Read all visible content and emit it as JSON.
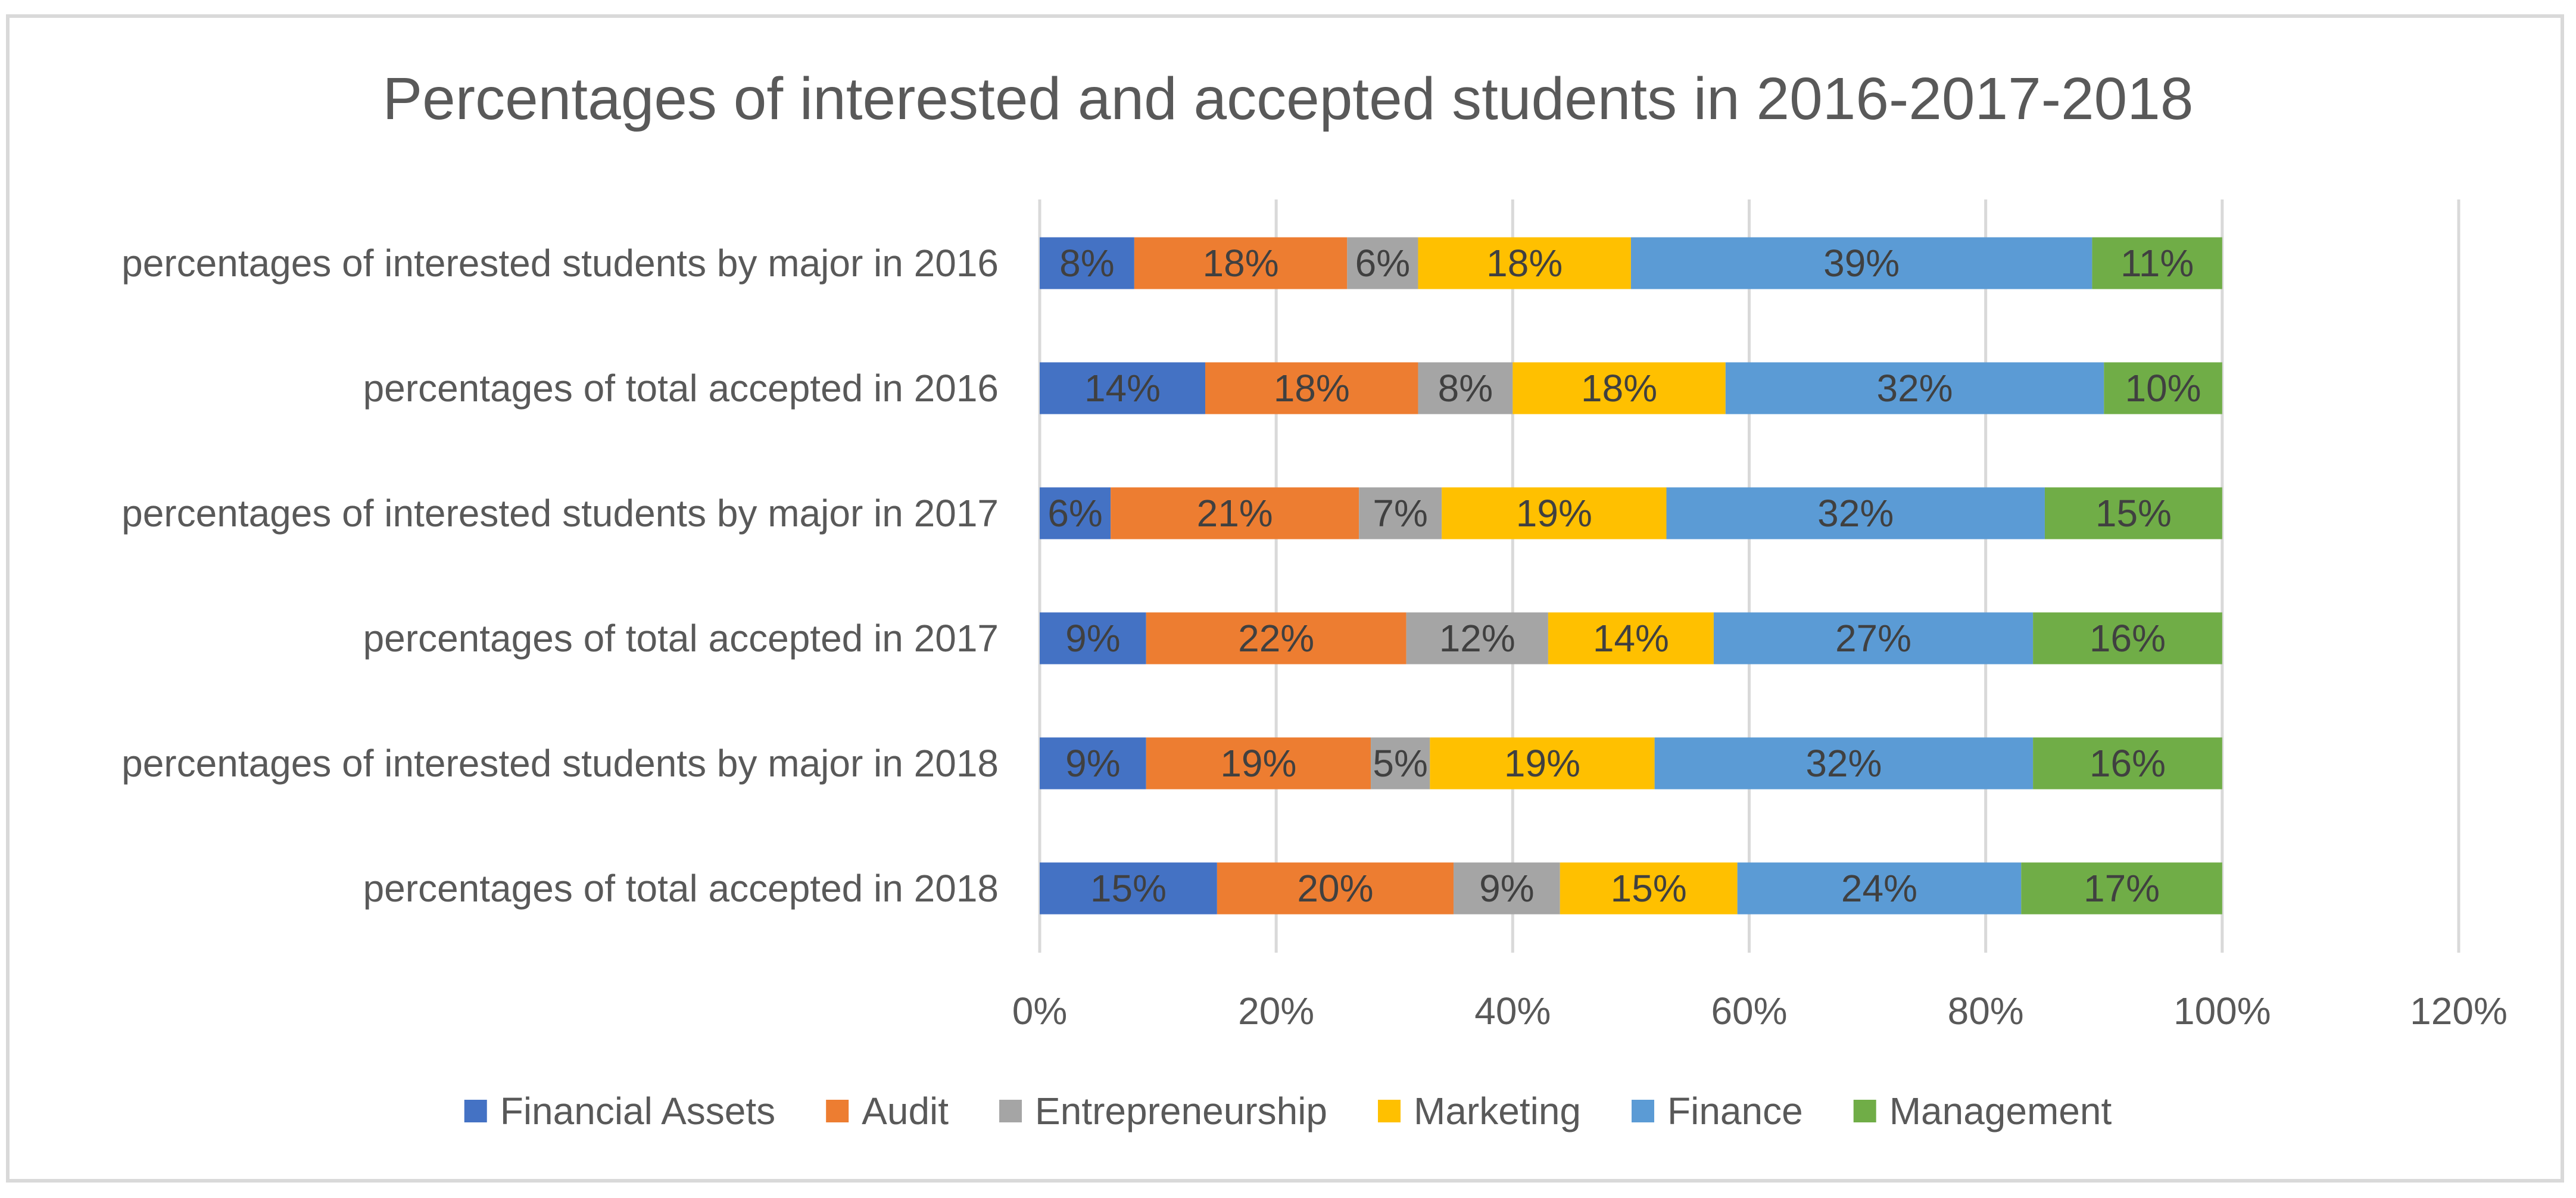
{
  "chart_data": {
    "type": "bar",
    "orientation": "horizontal",
    "stacked": true,
    "title": "Percentages of interested and accepted students in 2016-2017-2018",
    "categories": [
      "percentages of interested students by major in 2016",
      "percentages of total accepted in 2016",
      "percentages of interested students by major in 2017",
      "percentages of total accepted in 2017",
      "percentages of interested students by major in 2018",
      "percentages of total accepted in 2018"
    ],
    "series": [
      {
        "name": "Financial Assets",
        "color": "#4472c4",
        "values": [
          8,
          14,
          6,
          9,
          9,
          15
        ]
      },
      {
        "name": "Audit",
        "color": "#ed7d31",
        "values": [
          18,
          18,
          21,
          22,
          19,
          20
        ]
      },
      {
        "name": "Entrepreneurship",
        "color": "#a5a5a5",
        "values": [
          6,
          8,
          7,
          12,
          5,
          9
        ]
      },
      {
        "name": "Marketing",
        "color": "#ffc000",
        "values": [
          18,
          18,
          19,
          14,
          19,
          15
        ]
      },
      {
        "name": "Finance",
        "color": "#5b9bd5",
        "values": [
          39,
          32,
          32,
          27,
          32,
          24
        ]
      },
      {
        "name": "Management",
        "color": "#70ad47",
        "values": [
          11,
          10,
          15,
          16,
          16,
          17
        ]
      }
    ],
    "data_label_suffix": "%",
    "xlim": [
      0,
      120
    ],
    "xticks": [
      0,
      20,
      40,
      60,
      80,
      100,
      120
    ],
    "xtick_labels": [
      "0%",
      "20%",
      "40%",
      "60%",
      "80%",
      "100%",
      "120%"
    ],
    "xlabel": "",
    "ylabel": "",
    "grid": "vertical",
    "legend": "bottom",
    "colors": {
      "grid": "#d9d9d9",
      "text": "#595959",
      "label_text": "#404040"
    }
  }
}
